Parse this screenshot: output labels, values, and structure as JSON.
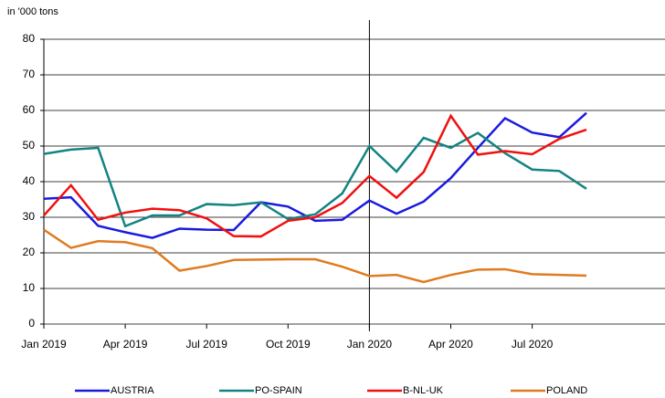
{
  "chart_data": {
    "type": "line",
    "unit_label": "in '000 tons",
    "categories": [
      "Jan 2019",
      null,
      null,
      "Apr 2019",
      null,
      null,
      "Jul 2019",
      null,
      null,
      "Oct 2019",
      null,
      null,
      "Jan 2020",
      null,
      null,
      "Apr 2020",
      null,
      null,
      "Jul 2020",
      null,
      null
    ],
    "series": [
      {
        "name": "AUSTRIA",
        "color": "#1a1ae0",
        "values": [
          35.2,
          35.6,
          27.6,
          25.8,
          24.2,
          26.8,
          26.5,
          26.4,
          34.2,
          33,
          29,
          29.3,
          34.7,
          31,
          34.4,
          41,
          49.5,
          57.8,
          53.8,
          52.5,
          59.3
        ]
      },
      {
        "name": "PO-SPAIN",
        "color": "#138383",
        "values": [
          47.8,
          49,
          49.5,
          27.5,
          30.5,
          30.5,
          33.7,
          33.4,
          34.2,
          29.5,
          30.8,
          36.7,
          50,
          42.8,
          52.3,
          49.5,
          53.7,
          48,
          43.4,
          43,
          38
        ]
      },
      {
        "name": "B-NL-UK",
        "color": "#f01010",
        "values": [
          30.5,
          39,
          29.3,
          31.3,
          32.4,
          32,
          29.7,
          24.7,
          24.6,
          29,
          30,
          34,
          41.6,
          35.5,
          42.7,
          58.5,
          47.6,
          48.6,
          47.7,
          52,
          54.6
        ]
      },
      {
        "name": "POLAND",
        "color": "#e07b20",
        "values": [
          26.5,
          21.4,
          23.3,
          23,
          21.3,
          15,
          16.3,
          18,
          18.1,
          18.2,
          18.2,
          16.1,
          13.5,
          13.8,
          11.8,
          13.8,
          15.3,
          15.4,
          14,
          13.8,
          13.6
        ]
      }
    ],
    "ylim": [
      0,
      80
    ],
    "yticks": [
      0,
      10,
      20,
      30,
      40,
      50,
      60,
      70,
      80
    ],
    "grid": true,
    "legend": "bottom"
  }
}
